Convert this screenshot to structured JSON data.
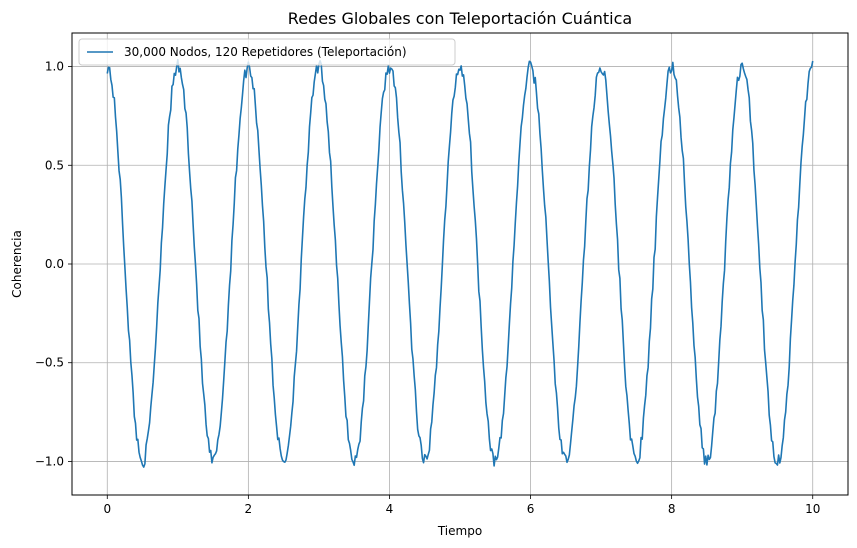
{
  "chart_data": {
    "type": "line",
    "title": "Redes Globales con Teleportación Cuántica",
    "xlabel": "Tiempo",
    "ylabel": "Coherencia",
    "xlim": [
      -0.5,
      10.5
    ],
    "ylim": [
      -1.17,
      1.17
    ],
    "xticks": [
      0,
      2,
      4,
      6,
      8,
      10
    ],
    "xtick_labels": [
      "0",
      "2",
      "4",
      "6",
      "8",
      "10"
    ],
    "yticks": [
      -1.0,
      -0.5,
      0.0,
      0.5,
      1.0
    ],
    "ytick_labels": [
      "−1.0",
      "−0.5",
      "0.0",
      "0.5",
      "1.0"
    ],
    "grid": true,
    "legend_position": "top-left",
    "series": [
      {
        "name": "30,000 Nodos, 120 Repetidores (Teleportación)",
        "color": "#1f77b4",
        "function": "cos(2*pi*t) plus small noise",
        "x_range": [
          0,
          10
        ],
        "period": 1,
        "amplitude": 1.0
      }
    ]
  }
}
